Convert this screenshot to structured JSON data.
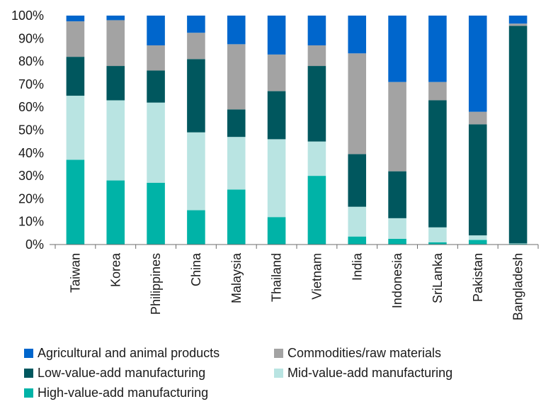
{
  "chart_data": {
    "type": "bar",
    "stacked": true,
    "categories": [
      "Taiwan",
      "Korea",
      "Philippines",
      "China",
      "Malaysia",
      "Thailand",
      "Vietnam",
      "India",
      "Indonesia",
      "SriLanka",
      "Pakistan",
      "Bangladesh"
    ],
    "series": [
      {
        "name": "High-value-add manufacturing",
        "color": "#00b3a7",
        "values": [
          37,
          28,
          27,
          15,
          24,
          12,
          30,
          3.5,
          2.5,
          1,
          2,
          0.3
        ]
      },
      {
        "name": "Mid-value-add manufacturing",
        "color": "#b9e4e2",
        "values": [
          28,
          35,
          35,
          34,
          23,
          34,
          15,
          13,
          9,
          6.5,
          2,
          0.2
        ]
      },
      {
        "name": "Low-value-add manufacturing",
        "color": "#00575e",
        "values": [
          17,
          15,
          14,
          32,
          12,
          21,
          33,
          23,
          20.5,
          55.5,
          48.5,
          95
        ]
      },
      {
        "name": "Commodities/raw materials",
        "color": "#a3a3a3",
        "values": [
          15.5,
          20,
          11,
          11.5,
          28.5,
          16,
          9,
          44,
          39,
          8,
          5.5,
          1
        ]
      },
      {
        "name": "Agricultural and animal products",
        "color": "#0066cc",
        "values": [
          2.5,
          2,
          13,
          7.5,
          12.5,
          17,
          13,
          16.5,
          29,
          29,
          42,
          3.5
        ]
      }
    ],
    "ylim": [
      0,
      100
    ],
    "yticks": [
      "0%",
      "10%",
      "20%",
      "30%",
      "40%",
      "50%",
      "60%",
      "70%",
      "80%",
      "90%",
      "100%"
    ],
    "grid": false,
    "legend_position": "bottom",
    "legend_order": [
      "Agricultural and animal products",
      "Commodities/raw materials",
      "Low-value-add manufacturing",
      "Mid-value-add manufacturing",
      "High-value-add manufacturing"
    ]
  }
}
